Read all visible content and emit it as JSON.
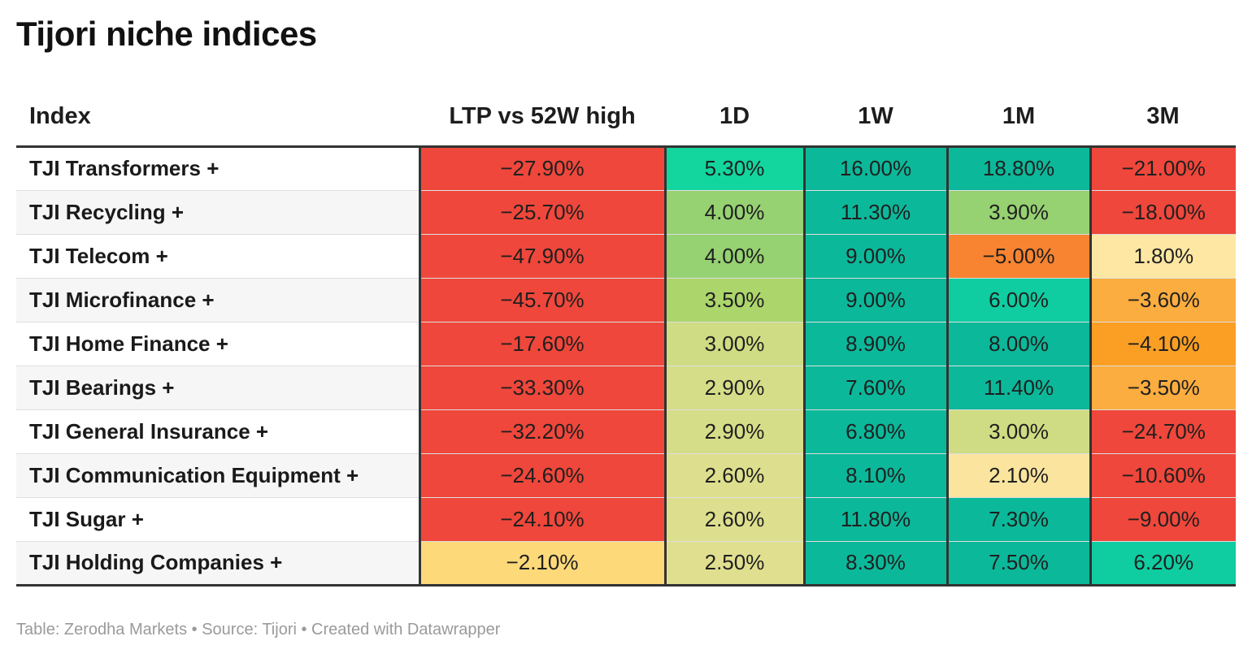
{
  "title": "Tijori niche indices",
  "footer": "Table: Zerodha Markets • Source: Tijori • Created with Datawrapper",
  "chart_data": {
    "type": "table",
    "columns": [
      "Index",
      "LTP vs 52W high",
      "1D",
      "1W",
      "1M",
      "3M"
    ],
    "rows": [
      {
        "name": "TJI Transformers +",
        "values": [
          "−27.90%",
          "5.30%",
          "16.00%",
          "18.80%",
          "−21.00%"
        ],
        "colors": [
          "#ef473b",
          "#12d69e",
          "#0cb89a",
          "#0cb89a",
          "#ef473b"
        ]
      },
      {
        "name": "TJI Recycling +",
        "values": [
          "−25.70%",
          "4.00%",
          "11.30%",
          "3.90%",
          "−18.00%"
        ],
        "colors": [
          "#ef473b",
          "#96d172",
          "#0cb89a",
          "#96d172",
          "#ef473b"
        ]
      },
      {
        "name": "TJI Telecom +",
        "values": [
          "−47.90%",
          "4.00%",
          "9.00%",
          "−5.00%",
          "1.80%"
        ],
        "colors": [
          "#ef473b",
          "#96d172",
          "#0cb89a",
          "#f88431",
          "#fde7a3"
        ]
      },
      {
        "name": "TJI Microfinance +",
        "values": [
          "−45.70%",
          "3.50%",
          "9.00%",
          "6.00%",
          "−3.60%"
        ],
        "colors": [
          "#ef473b",
          "#acd56b",
          "#0cb89a",
          "#0fcda1",
          "#fcad3f"
        ]
      },
      {
        "name": "TJI Home Finance +",
        "values": [
          "−17.60%",
          "3.00%",
          "8.90%",
          "8.00%",
          "−4.10%"
        ],
        "colors": [
          "#ef473b",
          "#cfdc83",
          "#0cb89a",
          "#0cb89a",
          "#fb9f24"
        ]
      },
      {
        "name": "TJI Bearings +",
        "values": [
          "−33.30%",
          "2.90%",
          "7.60%",
          "11.40%",
          "−3.50%"
        ],
        "colors": [
          "#ef473b",
          "#d5dd88",
          "#0cb89a",
          "#0cb89a",
          "#fcad3f"
        ]
      },
      {
        "name": "TJI General Insurance +",
        "values": [
          "−32.20%",
          "2.90%",
          "6.80%",
          "3.00%",
          "−24.70%"
        ],
        "colors": [
          "#ef473b",
          "#d5dd88",
          "#0cb89a",
          "#cfdc83",
          "#ef473b"
        ]
      },
      {
        "name": "TJI Communication Equipment +",
        "values": [
          "−24.60%",
          "2.60%",
          "8.10%",
          "2.10%",
          "−10.60%"
        ],
        "colors": [
          "#ef473b",
          "#dedf8e",
          "#0cb89a",
          "#fbe49e",
          "#ef473b"
        ]
      },
      {
        "name": "TJI Sugar +",
        "values": [
          "−24.10%",
          "2.60%",
          "11.80%",
          "7.30%",
          "−9.00%"
        ],
        "colors": [
          "#ef473b",
          "#dedf8e",
          "#0cb89a",
          "#0cb89a",
          "#ef473b"
        ]
      },
      {
        "name": "TJI Holding Companies +",
        "values": [
          "−2.10%",
          "2.50%",
          "8.30%",
          "7.50%",
          "6.20%"
        ],
        "colors": [
          "#fdd97a",
          "#e0df90",
          "#0cb89a",
          "#0cb89a",
          "#0fcda1"
        ]
      }
    ]
  }
}
